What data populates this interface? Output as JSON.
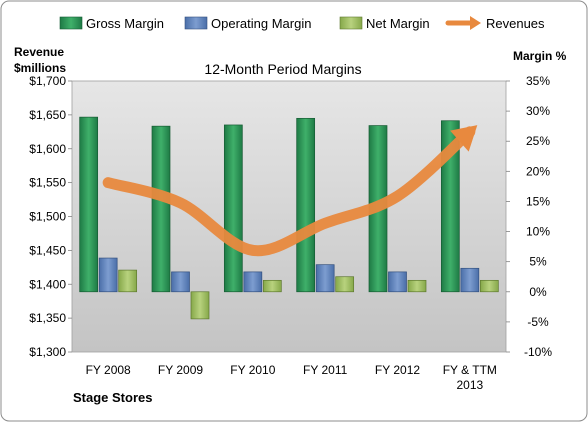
{
  "chart_data": {
    "type": "bar",
    "title": "12-Month Period Margins",
    "company_label": "Stage Stores",
    "left_axis_label": [
      "Revenue",
      "$millions"
    ],
    "right_axis_label": "Margin %",
    "categories": [
      [
        "FY 2008"
      ],
      [
        "FY 2009"
      ],
      [
        "FY 2010"
      ],
      [
        "FY 2011"
      ],
      [
        "FY 2012"
      ],
      [
        "FY & TTM",
        "2013"
      ]
    ],
    "series": [
      {
        "name": "Gross Margin",
        "type": "bar",
        "axis": "right",
        "unit": "%",
        "values": [
          29.0,
          27.5,
          27.7,
          28.8,
          27.6,
          28.4
        ]
      },
      {
        "name": "Operating Margin",
        "type": "bar",
        "axis": "right",
        "unit": "%",
        "values": [
          5.6,
          3.3,
          3.3,
          4.5,
          3.3,
          3.9
        ]
      },
      {
        "name": "Net Margin",
        "type": "bar",
        "axis": "right",
        "unit": "%",
        "values": [
          3.6,
          -4.5,
          1.9,
          2.5,
          1.9,
          1.9
        ]
      },
      {
        "name": "Revenues",
        "type": "line",
        "axis": "left",
        "unit": "$ millions",
        "values": [
          1550,
          1520,
          1450,
          1490,
          1530,
          1625
        ]
      }
    ],
    "left_axis": {
      "min": 1300,
      "max": 1700,
      "step": 50,
      "tick_labels": [
        "$1,300",
        "$1,350",
        "$1,400",
        "$1,450",
        "$1,500",
        "$1,550",
        "$1,600",
        "$1,650",
        "$1,700"
      ]
    },
    "right_axis": {
      "min": -10,
      "max": 35,
      "step": 5,
      "tick_labels": [
        "-10%",
        "-5%",
        "0%",
        "5%",
        "10%",
        "15%",
        "20%",
        "25%",
        "30%",
        "35%"
      ]
    },
    "legend_position": "top",
    "grid": false,
    "colors": {
      "gross": "#1e7a45",
      "gross_light": "#3fb06a",
      "operating": "#4a6ea8",
      "operating_light": "#7d9dd0",
      "net": "#86a84a",
      "net_light": "#b8d27e",
      "revenue": "#e8893e",
      "plot_bg_top": "#e6e6e6",
      "plot_bg_bottom": "#c4c4c4"
    }
  }
}
